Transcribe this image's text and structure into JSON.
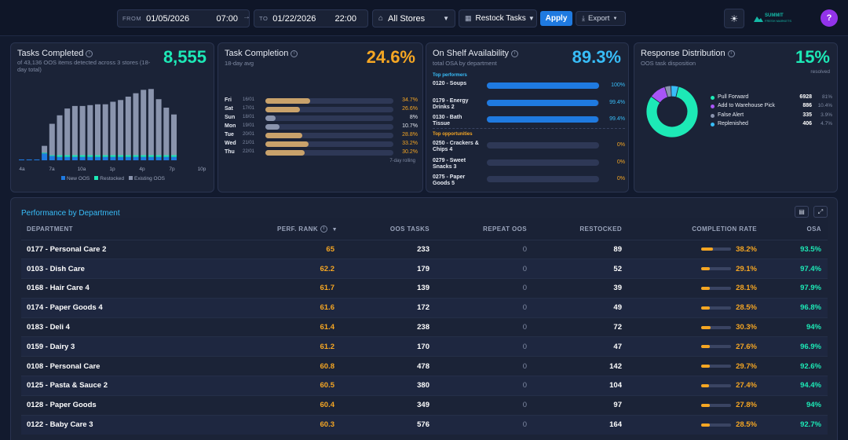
{
  "topbar": {
    "from_label": "FROM",
    "from_date": "01/05/2026",
    "from_time": "07:00",
    "arrow": "→",
    "to_label": "TO",
    "to_date": "01/22/2026",
    "to_time": "22:00",
    "store": "All Stores",
    "task": "Restock Tasks",
    "apply": "Apply",
    "export": "Export",
    "brand": "SUMMIT",
    "brand_sub": "FRESH MARKETS",
    "avatar": "?"
  },
  "tasks": {
    "title": "Tasks Completed",
    "subtitle": "of 43,136 OOS items detected across 3 stores (18-day total)",
    "value": "8,555",
    "hours": [
      "4a",
      "7a",
      "10a",
      "1p",
      "4p",
      "7p",
      "10p"
    ],
    "legend": [
      "New OOS",
      "Restocked",
      "Existing OOS"
    ],
    "chart_data": {
      "type": "bar",
      "series": [
        {
          "name": "New OOS",
          "values": [
            1,
            1,
            1,
            8,
            5,
            4,
            4,
            4,
            4,
            4,
            4,
            4,
            4,
            4,
            4,
            4,
            4,
            4,
            4,
            4,
            4
          ]
        },
        {
          "name": "Restocked",
          "values": [
            0,
            0,
            0,
            1,
            1,
            2,
            2,
            2,
            2,
            2,
            2,
            2,
            2,
            2,
            2,
            2,
            2,
            2,
            2,
            2,
            2
          ]
        },
        {
          "name": "Existing OOS",
          "values": [
            0,
            0,
            0,
            8,
            37,
            47,
            55,
            58,
            58,
            59,
            60,
            60,
            63,
            65,
            69,
            73,
            77,
            78,
            66,
            56,
            48
          ]
        }
      ]
    }
  },
  "completion": {
    "title": "Task Completion",
    "subtitle": "18-day avg",
    "value": "24.6%",
    "footnote": "7-day rolling",
    "rows": [
      {
        "day": "Fri",
        "date": "16/01",
        "pct": "34.7%",
        "v": 34.7
      },
      {
        "day": "Sat",
        "date": "17/01",
        "pct": "26.6%",
        "v": 26.6
      },
      {
        "day": "Sun",
        "date": "18/01",
        "pct": "8%",
        "v": 8
      },
      {
        "day": "Mon",
        "date": "19/01",
        "pct": "10.7%",
        "v": 10.7
      },
      {
        "day": "Tue",
        "date": "20/01",
        "pct": "28.8%",
        "v": 28.8
      },
      {
        "day": "Wed",
        "date": "21/01",
        "pct": "33.2%",
        "v": 33.2
      },
      {
        "day": "Thu",
        "date": "22/01",
        "pct": "30.2%",
        "v": 30.2
      }
    ]
  },
  "osa": {
    "title": "On Shelf Availability",
    "subtitle": "total OSA by department",
    "value": "89.3%",
    "top_label": "Top performers",
    "opp_label": "Top opportunities",
    "top": [
      {
        "name": "0120 - Soups",
        "pct": "100%",
        "v": 100
      },
      {
        "name": "0179 - Energy Drinks 2",
        "pct": "99.4%",
        "v": 99.4
      },
      {
        "name": "0130 - Bath Tissue",
        "pct": "99.4%",
        "v": 99.4
      }
    ],
    "opp": [
      {
        "name": "0250 - Crackers & Chips 4",
        "pct": "0%",
        "v": 0
      },
      {
        "name": "0279 - Sweet Snacks 3",
        "pct": "0%",
        "v": 0
      },
      {
        "name": "0275 - Paper Goods 5",
        "pct": "0%",
        "v": 0
      }
    ]
  },
  "response": {
    "title": "Response Distribution",
    "subtitle": "OOS task disposition",
    "value": "15%",
    "value_label": "resolved",
    "items": [
      {
        "name": "Pull Forward",
        "count": "6928",
        "pct": "81%",
        "v": 81,
        "color": "#1de9b6"
      },
      {
        "name": "Add to Warehouse Pick",
        "count": "886",
        "pct": "10.4%",
        "v": 10.4,
        "color": "#a855f7"
      },
      {
        "name": "False Alert",
        "count": "335",
        "pct": "3.9%",
        "v": 3.9,
        "color": "#8a94ad"
      },
      {
        "name": "Replenished",
        "count": "406",
        "pct": "4.7%",
        "v": 4.7,
        "color": "#38bdf8"
      }
    ]
  },
  "perf": {
    "title": "Performance by Department",
    "headers": {
      "dept": "DEPARTMENT",
      "rank": "PERF. RANK",
      "sort": "▼",
      "oos": "OOS TASKS",
      "repeat": "REPEAT OOS",
      "restocked": "RESTOCKED",
      "rate": "COMPLETION RATE",
      "osa": "OSA"
    },
    "rows": [
      {
        "dept": "0177 - Personal Care 2",
        "rank": "65",
        "oos": "233",
        "repeat": "0",
        "restocked": "89",
        "rate": "38.2%",
        "rv": 38.2,
        "osa": "93.5%"
      },
      {
        "dept": "0103 - Dish Care",
        "rank": "62.2",
        "oos": "179",
        "repeat": "0",
        "restocked": "52",
        "rate": "29.1%",
        "rv": 29.1,
        "osa": "97.4%"
      },
      {
        "dept": "0168 - Hair Care 4",
        "rank": "61.7",
        "oos": "139",
        "repeat": "0",
        "restocked": "39",
        "rate": "28.1%",
        "rv": 28.1,
        "osa": "97.9%"
      },
      {
        "dept": "0174 - Paper Goods 4",
        "rank": "61.6",
        "oos": "172",
        "repeat": "0",
        "restocked": "49",
        "rate": "28.5%",
        "rv": 28.5,
        "osa": "96.8%"
      },
      {
        "dept": "0183 - Deli 4",
        "rank": "61.4",
        "oos": "238",
        "repeat": "0",
        "restocked": "72",
        "rate": "30.3%",
        "rv": 30.3,
        "osa": "94%"
      },
      {
        "dept": "0159 - Dairy 3",
        "rank": "61.2",
        "oos": "170",
        "repeat": "0",
        "restocked": "47",
        "rate": "27.6%",
        "rv": 27.6,
        "osa": "96.9%"
      },
      {
        "dept": "0108 - Personal Care",
        "rank": "60.8",
        "oos": "478",
        "repeat": "0",
        "restocked": "142",
        "rate": "29.7%",
        "rv": 29.7,
        "osa": "92.6%"
      },
      {
        "dept": "0125 - Pasta & Sauce 2",
        "rank": "60.5",
        "oos": "380",
        "repeat": "0",
        "restocked": "104",
        "rate": "27.4%",
        "rv": 27.4,
        "osa": "94.4%"
      },
      {
        "dept": "0128 - Paper Goods",
        "rank": "60.4",
        "oos": "349",
        "repeat": "0",
        "restocked": "97",
        "rate": "27.8%",
        "rv": 27.8,
        "osa": "94%"
      },
      {
        "dept": "0122 - Baby Care 3",
        "rank": "60.3",
        "oos": "576",
        "repeat": "0",
        "restocked": "164",
        "rate": "28.5%",
        "rv": 28.5,
        "osa": "92.7%"
      }
    ]
  }
}
